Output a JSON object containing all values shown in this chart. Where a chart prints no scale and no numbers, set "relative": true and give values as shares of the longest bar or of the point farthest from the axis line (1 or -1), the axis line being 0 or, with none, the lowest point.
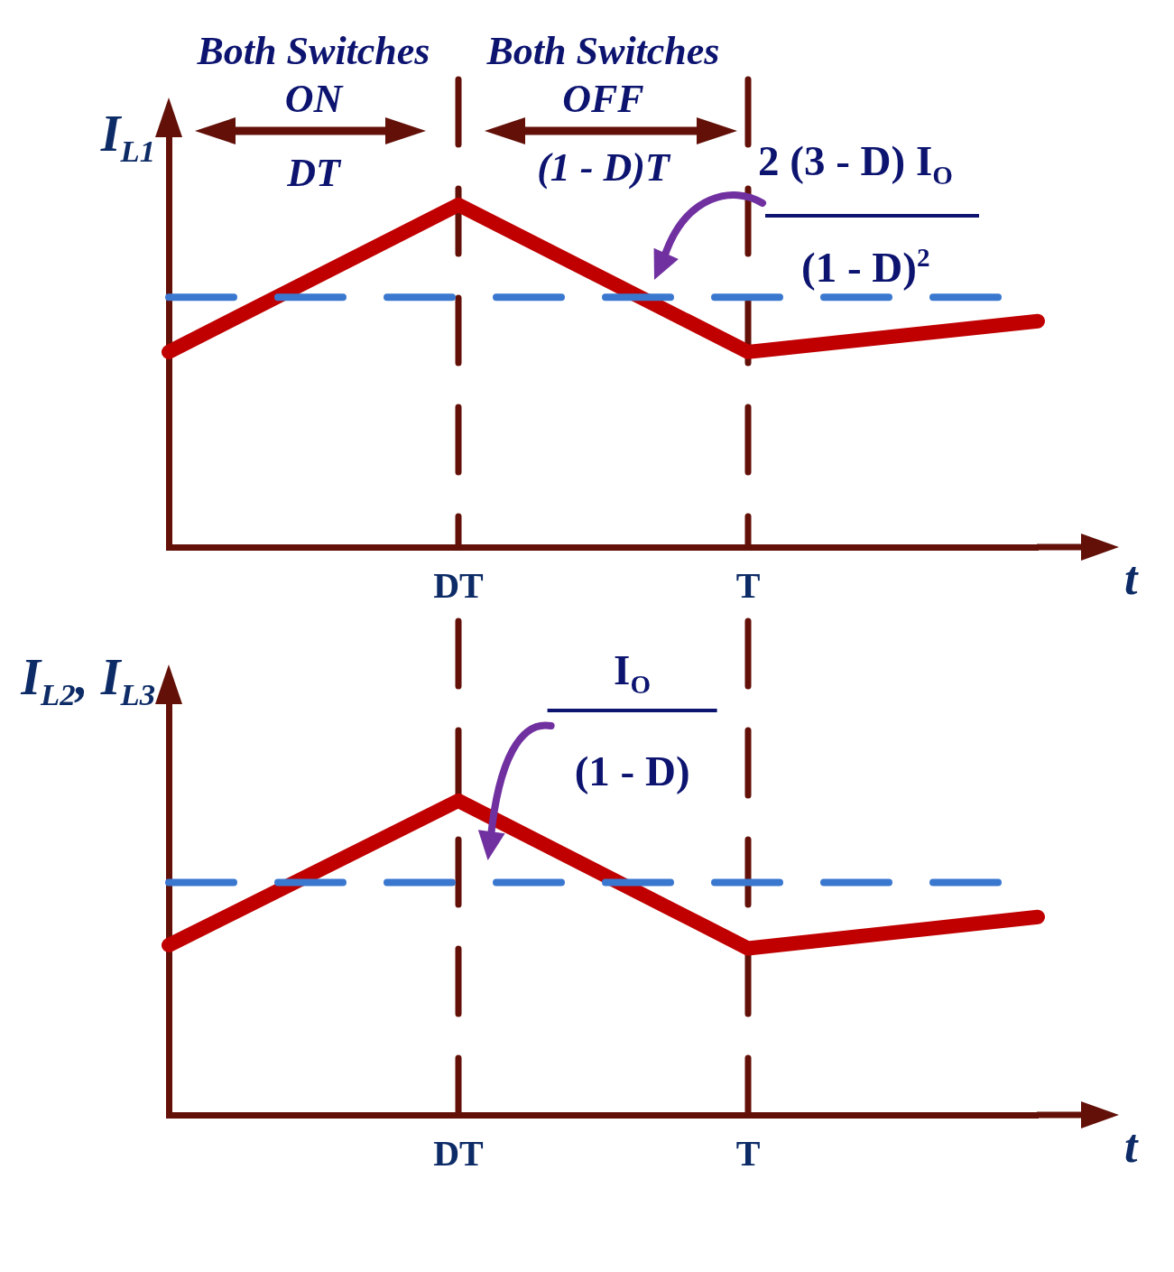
{
  "chart_data": [
    {
      "type": "line",
      "ylabel": "I$_{L1}$",
      "xlabel": "t",
      "relative": true,
      "categories": [
        null,
        "DT",
        "T",
        null
      ],
      "series": [
        {
          "color": "#c00000",
          "values": [
            0.57,
            1,
            0.57,
            0.66
          ]
        }
      ],
      "ref_lines": [
        {
          "axis": "x",
          "value": "DT",
          "color": "#621008",
          "line_style": "dashed"
        },
        {
          "axis": "x",
          "value": "T",
          "color": "#621008",
          "line_style": "dashed"
        },
        {
          "axis": "y",
          "value": 0.73,
          "color": "#3a78d0",
          "line_style": "dashed"
        }
      ],
      "annotations": [
        "Both Switches ON",
        "DT",
        "Both Switches OFF",
        "(1 - D)T",
        "2 (3 - D) I$_{O}$",
        "(1 - D)$^{2}$"
      ],
      "legend": false,
      "marker": "none",
      "line_style": "solid"
    },
    {
      "type": "line",
      "ylabel": "I$_{L2}$, I$_{L3}$",
      "xlabel": "t",
      "relative": true,
      "categories": [
        null,
        "DT",
        "T",
        null
      ],
      "series": [
        {
          "color": "#c00000",
          "values": [
            0.54,
            1,
            0.53,
            0.63
          ]
        }
      ],
      "ref_lines": [
        {
          "axis": "x",
          "value": "DT",
          "color": "#621008",
          "line_style": "dashed"
        },
        {
          "axis": "x",
          "value": "T",
          "color": "#621008",
          "line_style": "dashed"
        },
        {
          "axis": "y",
          "value": 0.74,
          "color": "#3a78d0",
          "line_style": "dashed"
        }
      ],
      "annotations": [
        "I$_{O}$",
        "(1 - D)"
      ],
      "legend": false,
      "marker": "none",
      "line_style": "solid"
    }
  ]
}
